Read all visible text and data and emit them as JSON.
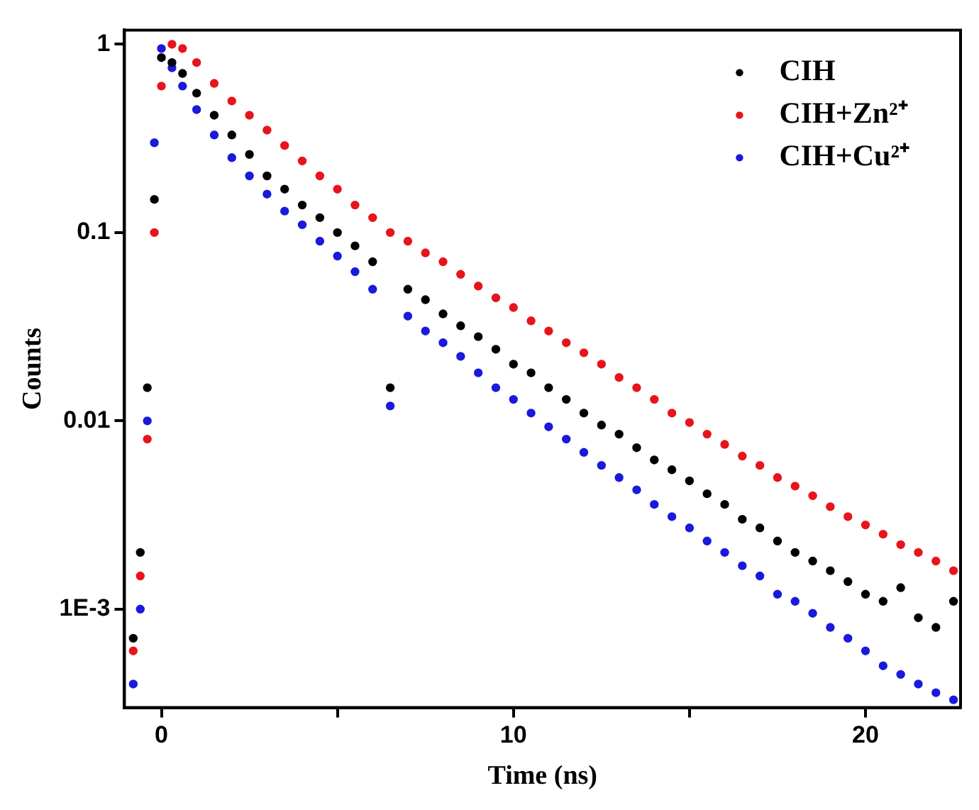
{
  "chart_data": {
    "type": "scatter",
    "xlabel": "Time (ns)",
    "ylabel": "Counts",
    "log": "y",
    "grid": false,
    "legend": "top right",
    "marker": "circle",
    "xlim": [
      -1.05,
      22.7
    ],
    "xticks": [
      0,
      {
        "value": 5,
        "label": null
      },
      10,
      {
        "value": 15,
        "label": null
      },
      20
    ],
    "ylim": [
      0.0003,
      1.19
    ],
    "yticks": [
      1,
      0.1,
      0.01,
      {
        "value": 0.001,
        "label": "1E-3"
      }
    ],
    "x": [
      -0.8,
      -0.6,
      -0.4,
      -0.2,
      0,
      0.3,
      0.6,
      1,
      1.5,
      2,
      2.5,
      3,
      3.5,
      4,
      4.5,
      5,
      5.5,
      6,
      6.5,
      7,
      7.5,
      8,
      8.5,
      9,
      9.5,
      10,
      10.5,
      11,
      11.5,
      12,
      12.5,
      13,
      13.5,
      14,
      14.5,
      15,
      15.5,
      16,
      16.5,
      17,
      17.5,
      18,
      18.5,
      19,
      19.5,
      20,
      20.5,
      21,
      21.5,
      22,
      22.5
    ],
    "series": [
      {
        "name": "CIH",
        "color": "#000000",
        "values": [
          0.0007,
          0.002,
          0.015,
          0.15,
          0.85,
          0.8,
          0.7,
          0.55,
          0.42,
          0.33,
          0.26,
          0.2,
          0.17,
          0.14,
          0.12,
          0.1,
          0.085,
          0.07,
          0.015,
          0.05,
          0.044,
          0.037,
          0.032,
          0.028,
          0.024,
          0.02,
          0.018,
          0.015,
          0.013,
          0.011,
          0.0095,
          0.0085,
          0.0072,
          0.0062,
          0.0055,
          0.0048,
          0.0041,
          0.0036,
          0.003,
          0.0027,
          0.0023,
          0.002,
          0.0018,
          0.0016,
          0.0014,
          0.0012,
          0.0011,
          0.0013,
          0.0009,
          0.0008,
          0.0011
        ]
      },
      {
        "name": "CIH+Zn²⁺",
        "color": "#e8141c",
        "values": [
          0.0006,
          0.0015,
          0.008,
          0.1,
          0.6,
          1.0,
          0.95,
          0.8,
          0.62,
          0.5,
          0.42,
          0.35,
          0.29,
          0.24,
          0.2,
          0.17,
          0.14,
          0.12,
          0.1,
          0.09,
          0.078,
          0.07,
          0.06,
          0.052,
          0.045,
          0.04,
          0.034,
          0.03,
          0.026,
          0.023,
          0.02,
          0.017,
          0.015,
          0.013,
          0.011,
          0.0098,
          0.0085,
          0.0075,
          0.0065,
          0.0058,
          0.005,
          0.0045,
          0.004,
          0.0035,
          0.0031,
          0.0028,
          0.0025,
          0.0022,
          0.002,
          0.0018,
          0.0016
        ]
      },
      {
        "name": "CIH+Cu²⁺",
        "color": "#1a1adc",
        "values": [
          0.0004,
          0.001,
          0.01,
          0.3,
          0.95,
          0.75,
          0.6,
          0.45,
          0.33,
          0.25,
          0.2,
          0.16,
          0.13,
          0.11,
          0.09,
          0.075,
          0.062,
          0.05,
          0.012,
          0.036,
          0.03,
          0.026,
          0.022,
          0.018,
          0.015,
          0.013,
          0.011,
          0.0093,
          0.008,
          0.0068,
          0.0058,
          0.005,
          0.0043,
          0.0036,
          0.0031,
          0.0027,
          0.0023,
          0.002,
          0.0017,
          0.0015,
          0.0012,
          0.0011,
          0.00095,
          0.0008,
          0.0007,
          0.0006,
          0.0005,
          0.00045,
          0.0004,
          0.00036,
          0.00033
        ]
      }
    ]
  }
}
